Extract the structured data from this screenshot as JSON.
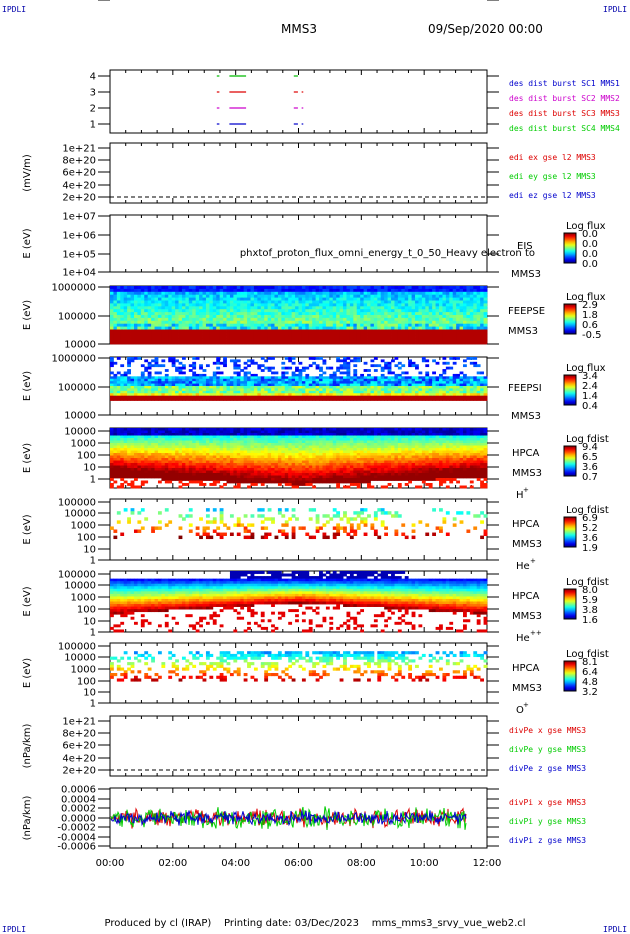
{
  "header": {
    "corner_left_top": "IPDLI",
    "corner_right_top": "IPDLI",
    "corner_left_bottom": "IPDLI",
    "corner_right_bottom": "IPDLI",
    "spacecraft": "MMS3",
    "date": "09/Sep/2020 00:00"
  },
  "footer": {
    "produced_by": "Produced by cl (IRAP)",
    "printing_date": "Printing date: 03/Dec/2023",
    "script_name": "mms_mms3_srvy_vue_web2.cl"
  },
  "colors": {
    "sc1": "#00bb00",
    "sc2": "#cc00cc",
    "sc3": "#dd0000",
    "sc4": "#00cc00",
    "x": "#dd0000",
    "y": "#00cc00",
    "z": "#0000cc"
  },
  "chart_data": [
    {
      "id": "burst",
      "type": "scatter",
      "ylabel": "",
      "yticks": [
        "4",
        "3",
        "2",
        "1"
      ],
      "yvalues": [
        4,
        3,
        2,
        1
      ],
      "ylim": [
        0.5,
        4.5
      ],
      "xlim_hours": [
        0,
        12
      ],
      "legend": [
        {
          "text": "des dist burst SC1 MMS1",
          "color": "#0000cc"
        },
        {
          "text": "des dist burst SC2 MMS2",
          "color": "#cc00cc"
        },
        {
          "text": "des dist burst SC3 MMS3",
          "color": "#dd0000"
        },
        {
          "text": "des dist burst SC4 MMS4",
          "color": "#00cc00"
        }
      ],
      "series": [
        {
          "level": 4,
          "color": "#00bb00",
          "intervals": [
            [
              3.4,
              3.45
            ],
            [
              3.8,
              4.3
            ],
            [
              5.85,
              5.95
            ]
          ]
        },
        {
          "level": 3,
          "color": "#dd0000",
          "intervals": [
            [
              3.4,
              3.45
            ],
            [
              3.8,
              4.3
            ],
            [
              5.85,
              5.95
            ],
            [
              6.1,
              6.12
            ]
          ]
        },
        {
          "level": 2,
          "color": "#cc00cc",
          "intervals": [
            [
              3.4,
              3.45
            ],
            [
              3.8,
              4.3
            ],
            [
              5.85,
              5.95
            ],
            [
              6.1,
              6.12
            ]
          ]
        },
        {
          "level": 1,
          "color": "#0000cc",
          "intervals": [
            [
              3.4,
              3.45
            ],
            [
              3.8,
              4.3
            ],
            [
              5.85,
              5.95
            ],
            [
              6.1,
              6.12
            ]
          ]
        }
      ]
    },
    {
      "id": "edi",
      "type": "line",
      "ylabel": "(mV/m)",
      "yticks": [
        "1e+21",
        "8e+20",
        "6e+20",
        "4e+20",
        "2e+20",
        "0"
      ],
      "yvalues": [
        1e+21,
        8e+20,
        6e+20,
        4e+20,
        2e+20,
        0
      ],
      "ylim": [
        -1e+20,
        1.1e+21
      ],
      "legend": [
        {
          "text": "edi ex gse l2 MMS3",
          "color": "#dd0000"
        },
        {
          "text": "edi ey gse l2 MMS3",
          "color": "#00cc00"
        },
        {
          "text": "edi ez gse l2 MMS3",
          "color": "#0000cc"
        }
      ],
      "dashed_zero": true
    },
    {
      "id": "eis",
      "type": "heatmap",
      "ylabel": "E (eV)",
      "yticks": [
        "1e+07",
        "1e+06",
        "1e+05",
        "1e+04"
      ],
      "instrument": [
        "EIS",
        "MMS3"
      ],
      "overlap_text": "phxtof_proton_flux_omni_energy_t_0_50_Heavy electron to",
      "colorbar": {
        "title": "Log flux",
        "ticks": [
          "0.0",
          "0.0",
          "0.0",
          "0.0"
        ]
      },
      "empty": true
    },
    {
      "id": "feeps_e",
      "type": "heatmap",
      "ylabel": "E (eV)",
      "yticks": [
        "1000000",
        "100000",
        "10000"
      ],
      "instrument": [
        "FEEPSE",
        "MMS3"
      ],
      "colorbar": {
        "title": "Log flux",
        "ticks": [
          "2.9",
          "1.8",
          "0.6",
          "-0.5"
        ]
      }
    },
    {
      "id": "feeps_i",
      "type": "heatmap",
      "ylabel": "E (eV)",
      "yticks": [
        "1000000",
        "100000",
        "10000"
      ],
      "instrument": [
        "FEEPSI",
        "MMS3"
      ],
      "colorbar": {
        "title": "Log flux",
        "ticks": [
          "3.4",
          "2.4",
          "1.4",
          "0.4"
        ]
      }
    },
    {
      "id": "hpca_h",
      "type": "heatmap",
      "ylabel": "E (eV)",
      "yticks": [
        "10000",
        "1000",
        "100",
        "10",
        "1"
      ],
      "instrument": [
        "HPCA",
        "MMS3"
      ],
      "species": "H",
      "species_sup": "+",
      "colorbar": {
        "title": "Log fdist",
        "ticks": [
          "9.4",
          "6.5",
          "3.6",
          "0.7"
        ]
      }
    },
    {
      "id": "hpca_he",
      "type": "heatmap",
      "ylabel": "E (eV)",
      "yticks": [
        "100000",
        "10000",
        "1000",
        "100",
        "10",
        "1"
      ],
      "instrument": [
        "HPCA",
        "MMS3"
      ],
      "species": "He",
      "species_sup": "+",
      "colorbar": {
        "title": "Log fdist",
        "ticks": [
          "6.9",
          "5.2",
          "3.6",
          "1.9"
        ]
      }
    },
    {
      "id": "hpca_he2",
      "type": "heatmap",
      "ylabel": "E (eV)",
      "yticks": [
        "100000",
        "10000",
        "1000",
        "100",
        "10",
        "1"
      ],
      "instrument": [
        "HPCA",
        "MMS3"
      ],
      "species": "He",
      "species_sup": "++",
      "colorbar": {
        "title": "Log fdist",
        "ticks": [
          "8.0",
          "5.9",
          "3.8",
          "1.6"
        ]
      }
    },
    {
      "id": "hpca_o",
      "type": "heatmap",
      "ylabel": "E (eV)",
      "yticks": [
        "100000",
        "10000",
        "1000",
        "100",
        "10",
        "1"
      ],
      "instrument": [
        "HPCA",
        "MMS3"
      ],
      "species": "O",
      "species_sup": "+",
      "colorbar": {
        "title": "Log fdist",
        "ticks": [
          "8.1",
          "6.4",
          "4.8",
          "3.2"
        ]
      }
    },
    {
      "id": "dive",
      "type": "line",
      "ylabel": "(nPa/km)",
      "yticks": [
        "1e+21",
        "8e+20",
        "6e+20",
        "4e+20",
        "2e+20",
        "0"
      ],
      "legend": [
        {
          "text": "divPe x gse MMS3",
          "color": "#dd0000"
        },
        {
          "text": "divPe y gse MMS3",
          "color": "#00cc00"
        },
        {
          "text": "divPe z gse MMS3",
          "color": "#0000cc"
        }
      ],
      "dashed_zero": true
    },
    {
      "id": "divi",
      "type": "line",
      "ylabel": "(nPa/km)",
      "yticks": [
        "0.0006",
        "0.0004",
        "0.0002",
        "0.0000",
        "-0.0002",
        "-0.0004",
        "-0.0006"
      ],
      "yvalues": [
        0.0006,
        0.0004,
        0.0002,
        0,
        -0.0002,
        -0.0004,
        -0.0006
      ],
      "ylim": [
        -0.0007,
        0.0007
      ],
      "legend": [
        {
          "text": "divPi x gse MMS3",
          "color": "#dd0000"
        },
        {
          "text": "divPi y gse MMS3",
          "color": "#00cc00"
        },
        {
          "text": "divPi z gse MMS3",
          "color": "#0000cc"
        }
      ],
      "data_end_hours": 11.35
    }
  ],
  "xaxis": {
    "ticks": [
      "00:00",
      "02:00",
      "04:00",
      "06:00",
      "08:00",
      "10:00",
      "12:00"
    ],
    "range_hours": [
      0,
      12
    ]
  }
}
